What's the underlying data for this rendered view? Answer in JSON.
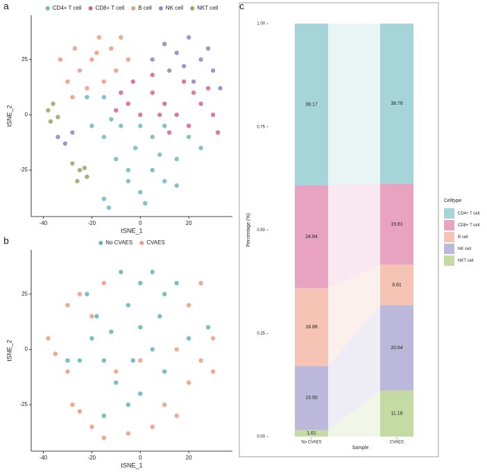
{
  "chart_data": [
    {
      "type": "scatter",
      "panel_label": "a",
      "xlabel": "tSNE_1",
      "ylabel": "tSNE_2",
      "xlim": [
        -45,
        38
      ],
      "ylim": [
        -46,
        45
      ],
      "xticks": [
        -40,
        -20,
        0,
        20
      ],
      "yticks": [
        -25,
        0,
        25
      ],
      "legend": "top",
      "series": [
        {
          "name": "CD4+ T cell",
          "color": "#6cb8bd",
          "x": [
            -5,
            0,
            5,
            10,
            15,
            20,
            5,
            -2,
            10,
            -10,
            -15,
            -20,
            -12,
            -22,
            -15,
            -8,
            0,
            15,
            -15,
            -13,
            25,
            2,
            -5,
            8
          ],
          "y": [
            -30,
            -35,
            -25,
            -30,
            -20,
            -10,
            -10,
            -15,
            -5,
            -20,
            -10,
            -5,
            -2,
            8,
            8,
            -5,
            -5,
            -32,
            -38,
            -42,
            -15,
            -40,
            -25,
            -18
          ]
        },
        {
          "name": "CD8+ T cell",
          "color": "#d6608a",
          "x": [
            -8,
            -5,
            0,
            5,
            10,
            15,
            20,
            25,
            30,
            32,
            28,
            18,
            5,
            -3,
            12,
            22,
            8,
            -10
          ],
          "y": [
            10,
            5,
            0,
            10,
            5,
            0,
            -5,
            5,
            0,
            -8,
            12,
            15,
            18,
            15,
            -8,
            10,
            0,
            2
          ]
        },
        {
          "name": "B cell",
          "color": "#ee9a78",
          "x": [
            -33,
            -30,
            -27,
            -25,
            -20,
            -17,
            -12,
            -8,
            -10,
            -15,
            -22,
            -28,
            -5,
            -18
          ],
          "y": [
            25,
            15,
            30,
            20,
            25,
            35,
            30,
            35,
            20,
            15,
            12,
            8,
            25,
            28
          ]
        },
        {
          "name": "NK cell",
          "color": "#8b84c6",
          "x": [
            5,
            10,
            15,
            20,
            25,
            30,
            33,
            28,
            18,
            12,
            22,
            -34,
            -31,
            -28
          ],
          "y": [
            25,
            32,
            28,
            35,
            25,
            20,
            12,
            30,
            22,
            20,
            15,
            -10,
            -13,
            -8
          ]
        },
        {
          "name": "NKT cell",
          "color": "#8fa861",
          "x": [
            -38,
            -36,
            -34,
            -37,
            -28,
            -25,
            -22,
            -26,
            -23
          ],
          "y": [
            2,
            5,
            -1,
            -3,
            -22,
            -25,
            -28,
            -30,
            -24
          ]
        }
      ]
    },
    {
      "type": "scatter",
      "panel_label": "b",
      "xlabel": "tSNE_1",
      "ylabel": "tSNE_2",
      "xlim": [
        -45,
        38
      ],
      "ylim": [
        -46,
        45
      ],
      "xticks": [
        -40,
        -20,
        0,
        20
      ],
      "yticks": [
        -25,
        0,
        25
      ],
      "legend": "top",
      "series": [
        {
          "name": "No CVAES",
          "color": "#5fb4b4",
          "x": [
            0,
            5,
            -5,
            10,
            15,
            0,
            5,
            -3,
            -10,
            -5,
            0,
            10,
            -18,
            -20,
            -12,
            -25,
            -15,
            20,
            -30,
            -22,
            -8,
            8,
            -15,
            28
          ],
          "y": [
            30,
            35,
            20,
            25,
            30,
            10,
            0,
            -5,
            -15,
            -25,
            -20,
            -10,
            15,
            5,
            8,
            -5,
            -30,
            5,
            -5,
            25,
            35,
            15,
            -5,
            10
          ]
        },
        {
          "name": "CVAES",
          "color": "#ee9a7a",
          "x": [
            -38,
            -35,
            -30,
            -28,
            -25,
            -20,
            -15,
            5,
            10,
            15,
            20,
            25,
            30,
            20,
            25,
            -25,
            -30,
            -15,
            -10,
            0,
            15,
            -5,
            30,
            -20
          ],
          "y": [
            5,
            -2,
            -10,
            -25,
            -28,
            -35,
            -40,
            -35,
            -25,
            -30,
            -15,
            -5,
            5,
            20,
            30,
            25,
            20,
            30,
            -10,
            -5,
            0,
            -38,
            -10,
            15
          ]
        }
      ]
    },
    {
      "type": "stacked_bar",
      "panel_label": "c",
      "xlabel": "Sample",
      "ylabel": "Percentage (%)",
      "categories": [
        "No CVAES",
        "CVAES"
      ],
      "ylim": [
        0,
        1
      ],
      "yticks": [
        {
          "value": 0,
          "label": "0.00"
        },
        {
          "value": 0.25,
          "label": "0.25"
        },
        {
          "value": 0.5,
          "label": "0.50"
        },
        {
          "value": 0.75,
          "label": "0.75"
        },
        {
          "value": 1,
          "label": "1.00"
        }
      ],
      "legend_title": "Celltype",
      "legend": "right",
      "series": [
        {
          "name": "NKT cell",
          "color": "#c5dba4",
          "values": [
            0.0161,
            0.1118
          ],
          "value_labels": [
            "1.61",
            "11.18"
          ]
        },
        {
          "name": "NK cell",
          "color": "#bcb8dc",
          "values": [
            0.155,
            0.2064
          ],
          "value_labels": [
            "15.50",
            "20.64"
          ]
        },
        {
          "name": "B cell",
          "color": "#f5c4b5",
          "values": [
            0.1888,
            0.0981
          ],
          "value_labels": [
            "18.88",
            "9.81"
          ]
        },
        {
          "name": "CD8+ T cell",
          "color": "#e8a3c0",
          "values": [
            0.2484,
            0.1961
          ],
          "value_labels": [
            "24.84",
            "19.61"
          ]
        },
        {
          "name": "CD4+ T cell",
          "color": "#a6d5d9",
          "values": [
            0.3917,
            0.3876
          ],
          "value_labels": [
            "39.17",
            "38.76"
          ]
        }
      ]
    }
  ]
}
